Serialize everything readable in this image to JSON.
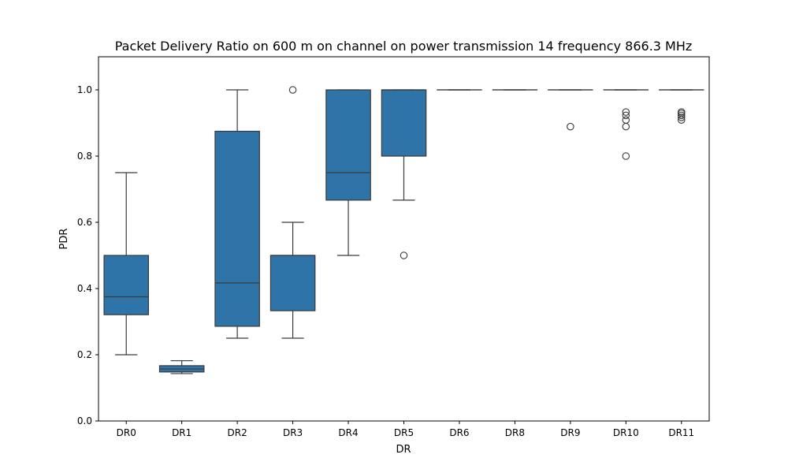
{
  "chart_data": {
    "type": "box",
    "title": "Packet Delivery Ratio on 600 m on channel on power transmission 14 frequency 866.3 MHz",
    "xlabel": "DR",
    "ylabel": "PDR",
    "ylim": [
      0,
      1.1
    ],
    "yticks": [
      "0.0",
      "0.2",
      "0.4",
      "0.6",
      "0.8",
      "1.0"
    ],
    "grid": false,
    "box_color": "#2f74a8",
    "categories": [
      "DR0",
      "DR1",
      "DR2",
      "DR3",
      "DR4",
      "DR5",
      "DR6",
      "DR8",
      "DR9",
      "DR10",
      "DR11"
    ],
    "boxes": [
      {
        "whisker_low": 0.2,
        "q1": 0.321,
        "median": 0.375,
        "q3": 0.5,
        "whisker_high": 0.75,
        "outliers": []
      },
      {
        "whisker_low": 0.143,
        "q1": 0.148,
        "median": 0.157,
        "q3": 0.167,
        "whisker_high": 0.182,
        "outliers": []
      },
      {
        "whisker_low": 0.25,
        "q1": 0.286,
        "median": 0.417,
        "q3": 0.875,
        "whisker_high": 1.0,
        "outliers": []
      },
      {
        "whisker_low": 0.25,
        "q1": 0.333,
        "median": 0.5,
        "q3": 0.5,
        "whisker_high": 0.6,
        "outliers": [
          1.0
        ]
      },
      {
        "whisker_low": 0.5,
        "q1": 0.667,
        "median": 0.75,
        "q3": 1.0,
        "whisker_high": 1.0,
        "outliers": []
      },
      {
        "whisker_low": 0.667,
        "q1": 0.8,
        "median": 1.0,
        "q3": 1.0,
        "whisker_high": 1.0,
        "outliers": [
          0.5
        ]
      },
      {
        "whisker_low": 1.0,
        "q1": 1.0,
        "median": 1.0,
        "q3": 1.0,
        "whisker_high": 1.0,
        "outliers": []
      },
      {
        "whisker_low": 1.0,
        "q1": 1.0,
        "median": 1.0,
        "q3": 1.0,
        "whisker_high": 1.0,
        "outliers": []
      },
      {
        "whisker_low": 1.0,
        "q1": 1.0,
        "median": 1.0,
        "q3": 1.0,
        "whisker_high": 1.0,
        "outliers": [
          0.889
        ]
      },
      {
        "whisker_low": 1.0,
        "q1": 1.0,
        "median": 1.0,
        "q3": 1.0,
        "whisker_high": 1.0,
        "outliers": [
          0.8,
          0.889,
          0.909,
          0.923,
          0.933
        ]
      },
      {
        "whisker_low": 1.0,
        "q1": 1.0,
        "median": 1.0,
        "q3": 1.0,
        "whisker_high": 1.0,
        "outliers": [
          0.909,
          0.917,
          0.923,
          0.929,
          0.933
        ]
      }
    ]
  }
}
